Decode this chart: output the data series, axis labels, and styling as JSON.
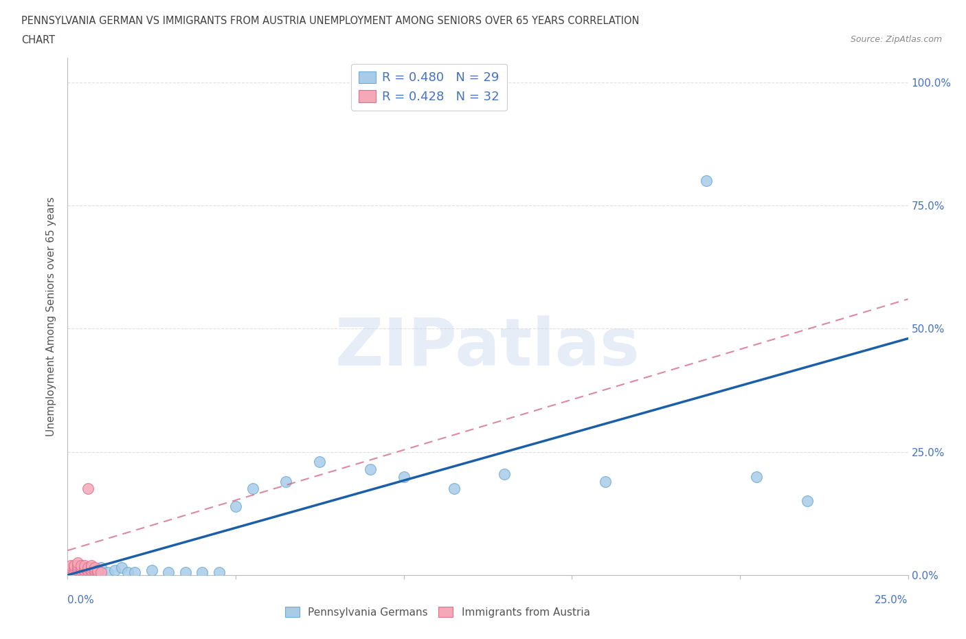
{
  "title_line1": "PENNSYLVANIA GERMAN VS IMMIGRANTS FROM AUSTRIA UNEMPLOYMENT AMONG SENIORS OVER 65 YEARS CORRELATION",
  "title_line2": "CHART",
  "source": "Source: ZipAtlas.com",
  "ylabel": "Unemployment Among Seniors over 65 years",
  "ytick_labels": [
    "0.0%",
    "25.0%",
    "50.0%",
    "75.0%",
    "100.0%"
  ],
  "ytick_values": [
    0.0,
    0.25,
    0.5,
    0.75,
    1.0
  ],
  "xlim": [
    0,
    0.25
  ],
  "ylim": [
    0,
    1.05
  ],
  "series1_name": "Pennsylvania Germans",
  "series1_R": 0.48,
  "series1_N": 29,
  "series1_color": "#a8cce8",
  "series1_edge_color": "#6aaad4",
  "series1_line_color": "#1a5fa8",
  "series1_x": [
    0.001,
    0.002,
    0.004,
    0.005,
    0.007,
    0.009,
    0.01,
    0.012,
    0.014,
    0.016,
    0.018,
    0.02,
    0.025,
    0.03,
    0.035,
    0.04,
    0.045,
    0.05,
    0.055,
    0.065,
    0.075,
    0.09,
    0.1,
    0.115,
    0.13,
    0.16,
    0.19,
    0.205,
    0.22
  ],
  "series1_y": [
    0.005,
    0.005,
    0.01,
    0.015,
    0.005,
    0.01,
    0.015,
    0.005,
    0.01,
    0.015,
    0.005,
    0.005,
    0.01,
    0.005,
    0.005,
    0.005,
    0.005,
    0.14,
    0.175,
    0.19,
    0.23,
    0.215,
    0.2,
    0.175,
    0.205,
    0.19,
    0.8,
    0.2,
    0.15
  ],
  "series2_name": "Immigrants from Austria",
  "series2_R": 0.428,
  "series2_N": 32,
  "series2_color": "#f4a8b8",
  "series2_edge_color": "#e07090",
  "series2_line_color": "#d06080",
  "series2_x": [
    0.001,
    0.001,
    0.001,
    0.002,
    0.002,
    0.002,
    0.003,
    0.003,
    0.003,
    0.003,
    0.004,
    0.004,
    0.004,
    0.004,
    0.005,
    0.005,
    0.005,
    0.005,
    0.006,
    0.006,
    0.006,
    0.006,
    0.007,
    0.007,
    0.007,
    0.007,
    0.008,
    0.008,
    0.008,
    0.009,
    0.009,
    0.01
  ],
  "series2_y": [
    0.01,
    0.015,
    0.02,
    0.005,
    0.015,
    0.02,
    0.01,
    0.015,
    0.02,
    0.025,
    0.005,
    0.01,
    0.015,
    0.02,
    0.005,
    0.01,
    0.015,
    0.02,
    0.005,
    0.01,
    0.015,
    0.175,
    0.005,
    0.01,
    0.015,
    0.02,
    0.005,
    0.01,
    0.015,
    0.005,
    0.01,
    0.005
  ],
  "trend1_x0": 0.0,
  "trend1_y0": 0.0,
  "trend1_x1": 0.25,
  "trend1_y1": 0.48,
  "trend2_x0": 0.0,
  "trend2_y0": 0.05,
  "trend2_x1": 0.25,
  "trend2_y1": 0.56,
  "watermark": "ZIPatlas",
  "watermark_color": "#c8d8ec",
  "background_color": "#ffffff",
  "grid_color": "#e0e0e0",
  "title_color": "#404040",
  "axis_label_color": "#4472c4",
  "legend_R_color": "#4472c4",
  "source_color": "#888888"
}
